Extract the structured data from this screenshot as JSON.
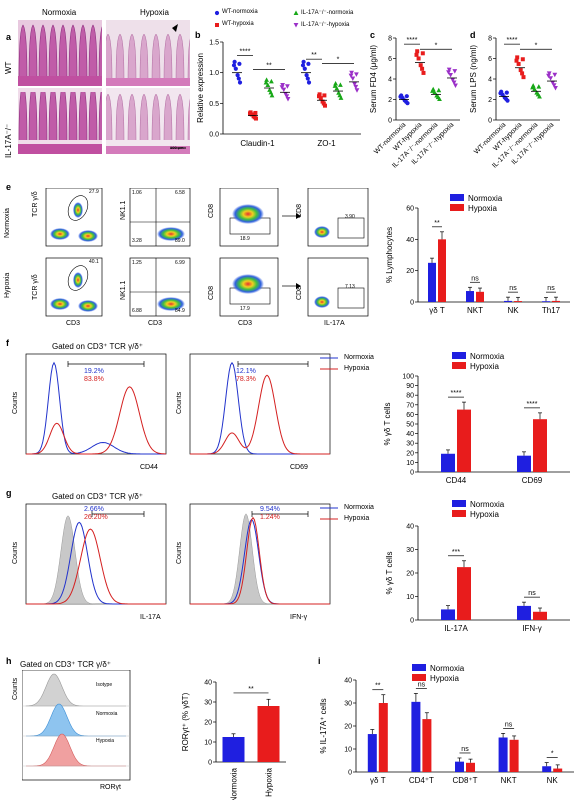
{
  "panel_a": {
    "label": "a",
    "col_labels": [
      "Normoxia",
      "Hypoxia"
    ],
    "row_labels": [
      "WT",
      "IL-17A⁻/⁻"
    ],
    "scale": "100 μm"
  },
  "panel_b": {
    "label": "b",
    "ylabel": "Relative expression",
    "legend": [
      "WT-normoxia",
      "IL-17A⁻/⁻-normoxia",
      "WT-hypoxia",
      "IL-17A⁻/⁻-hypoxia"
    ]
  },
  "panel_c": {
    "label": "c"
  },
  "panel_d": {
    "label": "d"
  },
  "panel_e": {
    "label": "e",
    "row_labels": [
      "Normoxia",
      "Hypoxia"
    ],
    "axis": {
      "tcr": "TCR γ/δ",
      "cd3": "CD3",
      "nk": "NK1.1",
      "cd8": "CD8",
      "il17": "IL-17A"
    },
    "gates": {
      "n_tcr": "27.9",
      "h_tcr": "40.1",
      "n_q": [
        "1.06",
        "6.58",
        "3.28",
        "89.0"
      ],
      "h_q": [
        "1.25",
        "6.99",
        "6.88",
        "84.9"
      ],
      "n_cd8": "18.9",
      "h_cd8": "17.9",
      "n_il": "3.90",
      "h_il": "7.13"
    }
  },
  "panel_f": {
    "label": "f",
    "title": "Gated on CD3⁺ TCR γ/δ⁺",
    "ylabel": "Counts",
    "x1": "CD44",
    "x2": "CD69",
    "n1": "19.2%",
    "h1": "83.8%",
    "n2": "12.1%",
    "h2": "78.3%",
    "legend": [
      "Normoxia",
      "Hypoxia"
    ]
  },
  "panel_g": {
    "label": "g",
    "title": "Gated on CD3⁺ TCR γ/δ⁺",
    "ylabel": "Counts",
    "x1": "IL-17A",
    "x2": "IFN-γ",
    "n1": "2.66%",
    "h1": "26.20%",
    "n2": "9.54%",
    "h2": "1.24%",
    "legend": [
      "Normoxia",
      "Hypoxia"
    ]
  },
  "panel_h": {
    "label": "h",
    "title": "Gated on CD3⁺ TCR γ/δ⁺",
    "ylabel": "Counts",
    "xlabel": "RORγt",
    "tracks": [
      "Isotype",
      "Normoxia",
      "Hypoxia"
    ]
  },
  "panel_i": {
    "label": "i",
    "legend": [
      "Normoxia",
      "Hypoxia"
    ]
  },
  "chart_data": [
    {
      "id": "b",
      "type": "scatter",
      "categories": [
        "Claudin-1",
        "ZO-1"
      ],
      "ylabel": "Relative expression",
      "ylim": [
        0,
        1.5
      ],
      "yticks": [
        "0.0",
        "0.5",
        "1.0",
        "1.5"
      ],
      "series": [
        {
          "name": "WT-normoxia",
          "values": [
            1.0,
            1.0
          ]
        },
        {
          "name": "WT-hypoxia",
          "values": [
            0.3,
            0.55
          ]
        },
        {
          "name": "IL-17A⁻/⁻-normoxia",
          "values": [
            0.75,
            0.7
          ]
        },
        {
          "name": "IL-17A⁻/⁻-hypoxia",
          "values": [
            0.68,
            0.85
          ]
        }
      ],
      "sig": [
        {
          "text": "****"
        },
        {
          "text": "**"
        },
        {
          "text": "**"
        },
        {
          "text": "*"
        }
      ]
    },
    {
      "id": "c",
      "type": "scatter",
      "categories": [
        "WT-normoxia",
        "WT-hypoxia",
        "IL-17A⁻/⁻-normoxia",
        "IL-17A⁻/⁻-hypoxia"
      ],
      "ylabel": "Serum FD4 (μg/ml)",
      "ylim": [
        0,
        8
      ],
      "yticks": [
        "0",
        "2",
        "4",
        "6",
        "8"
      ],
      "values": [
        2.0,
        5.6,
        2.5,
        4.1
      ],
      "sig": [
        {
          "text": "****"
        },
        {
          "text": "*"
        }
      ]
    },
    {
      "id": "d",
      "type": "scatter",
      "categories": [
        "WT-normoxia",
        "WT-hypoxia",
        "IL-17A⁻/⁻-normoxia",
        "IL-17A⁻/⁻-hypoxia"
      ],
      "ylabel": "Serum LPS (ng/ml)",
      "ylim": [
        0,
        8
      ],
      "yticks": [
        "0",
        "2",
        "4",
        "6",
        "8"
      ],
      "values": [
        2.3,
        5.1,
        2.8,
        3.8
      ],
      "sig": [
        {
          "text": "****"
        },
        {
          "text": "*"
        }
      ]
    },
    {
      "id": "e",
      "type": "bar",
      "categories": [
        "γδ T",
        "NKT",
        "NK",
        "Th17"
      ],
      "ylabel": "% Lymphocytes",
      "ylim": [
        0,
        60
      ],
      "yticks": [
        "0",
        "20",
        "40",
        "60"
      ],
      "series": [
        {
          "name": "Normoxia",
          "values": [
            25,
            7,
            0.7,
            0.5
          ]
        },
        {
          "name": "Hypoxia",
          "values": [
            40,
            6.5,
            0.6,
            0.7
          ]
        }
      ],
      "sig": [
        "**",
        "ns",
        "ns",
        "ns"
      ]
    },
    {
      "id": "f",
      "type": "bar",
      "categories": [
        "CD44",
        "CD69"
      ],
      "ylabel": "% γδ T cells",
      "ylim": [
        0,
        100
      ],
      "yticks": [
        "0",
        "10",
        "20",
        "30",
        "40",
        "50",
        "60",
        "70",
        "80",
        "90",
        "100"
      ],
      "series": [
        {
          "name": "Normoxia",
          "values": [
            19,
            17
          ]
        },
        {
          "name": "Hypoxia",
          "values": [
            65,
            55
          ]
        }
      ],
      "sig": [
        "****",
        "****"
      ]
    },
    {
      "id": "g",
      "type": "bar",
      "categories": [
        "IL-17A",
        "IFN-γ"
      ],
      "ylabel": "% γδ T cells",
      "ylim": [
        0,
        40
      ],
      "yticks": [
        "0",
        "10",
        "20",
        "30",
        "40"
      ],
      "series": [
        {
          "name": "Normoxia",
          "values": [
            4.5,
            6
          ]
        },
        {
          "name": "Hypoxia",
          "values": [
            22.5,
            3.5
          ]
        }
      ],
      "sig": [
        "***",
        "ns"
      ]
    },
    {
      "id": "h",
      "type": "bar",
      "categories": [
        "Normoxia",
        "Hypoxia"
      ],
      "ylabel": "RORγt⁺ (% γδT)",
      "ylim": [
        0,
        40
      ],
      "yticks": [
        "0",
        "10",
        "20",
        "30",
        "40"
      ],
      "values": [
        12.5,
        28
      ],
      "sig": [
        "**"
      ]
    },
    {
      "id": "i",
      "type": "bar",
      "categories": [
        "γδ T",
        "CD4⁺T",
        "CD8⁺T",
        "NKT",
        "NK"
      ],
      "ylabel": "% IL-17A⁺ cells",
      "ylim": [
        0,
        40
      ],
      "yticks": [
        "0",
        "10",
        "20",
        "30",
        "40"
      ],
      "series": [
        {
          "name": "Normoxia",
          "values": [
            16.5,
            30.5,
            4.5,
            15,
            2.5
          ]
        },
        {
          "name": "Hypoxia",
          "values": [
            30,
            23,
            4,
            14,
            1.5
          ]
        }
      ],
      "sig": [
        "**",
        "ns",
        "ns",
        "ns",
        "*"
      ]
    }
  ]
}
